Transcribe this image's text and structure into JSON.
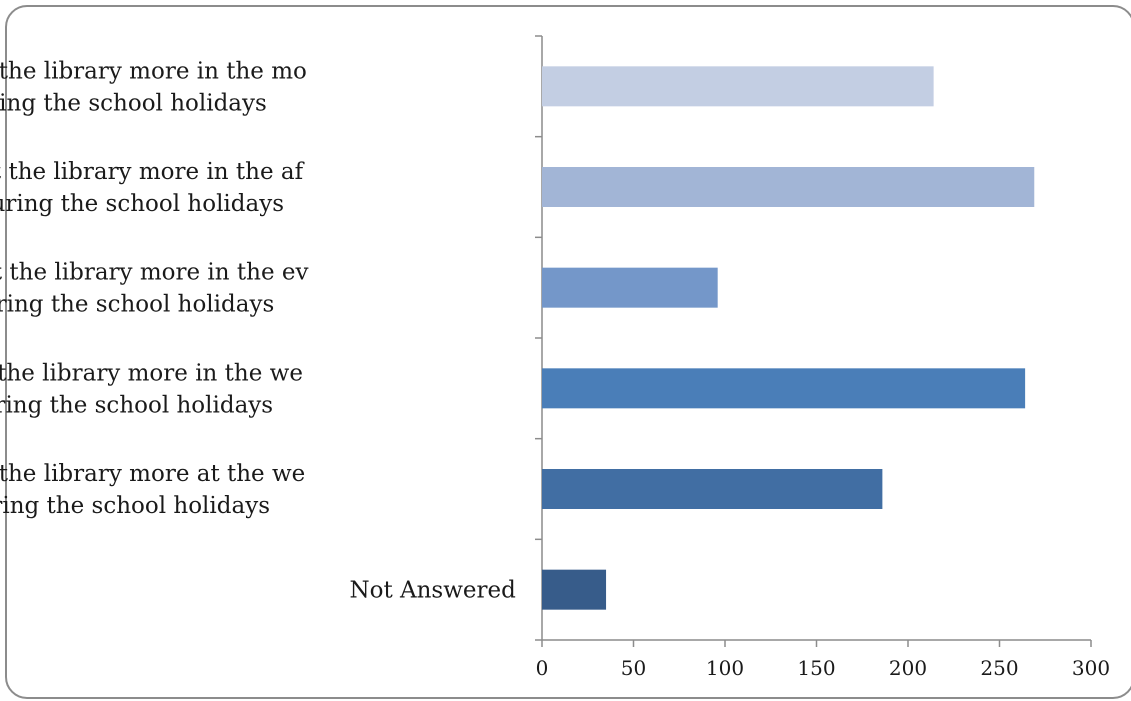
{
  "chart_data": {
    "type": "bar",
    "orientation": "horizontal",
    "categories": [
      [
        "I would visit the library more in the mo",
        "rning during the school holidays"
      ],
      [
        "I would visit the library more in the af",
        "ternoon during the school holidays"
      ],
      [
        "I would visit the library more in the ev",
        "ening during the school holidays"
      ],
      [
        "I would visit the library more in the we",
        "ekdays during the school holidays"
      ],
      [
        "I would visit the library more at the we",
        "ekend during the school holidays"
      ],
      [
        "Not Answered"
      ]
    ],
    "values": [
      214,
      269,
      96,
      264,
      186,
      35
    ],
    "bar_colors": [
      "#c3cee3",
      "#a2b5d6",
      "#7497c9",
      "#4a7eb8",
      "#416ea3",
      "#375c8a"
    ],
    "xlim": [
      0,
      300
    ],
    "xticks": [
      "0",
      "50",
      "100",
      "150",
      "200",
      "250",
      "300"
    ],
    "title": "",
    "xlabel": "",
    "ylabel": "",
    "grid": false,
    "legend": "none"
  }
}
